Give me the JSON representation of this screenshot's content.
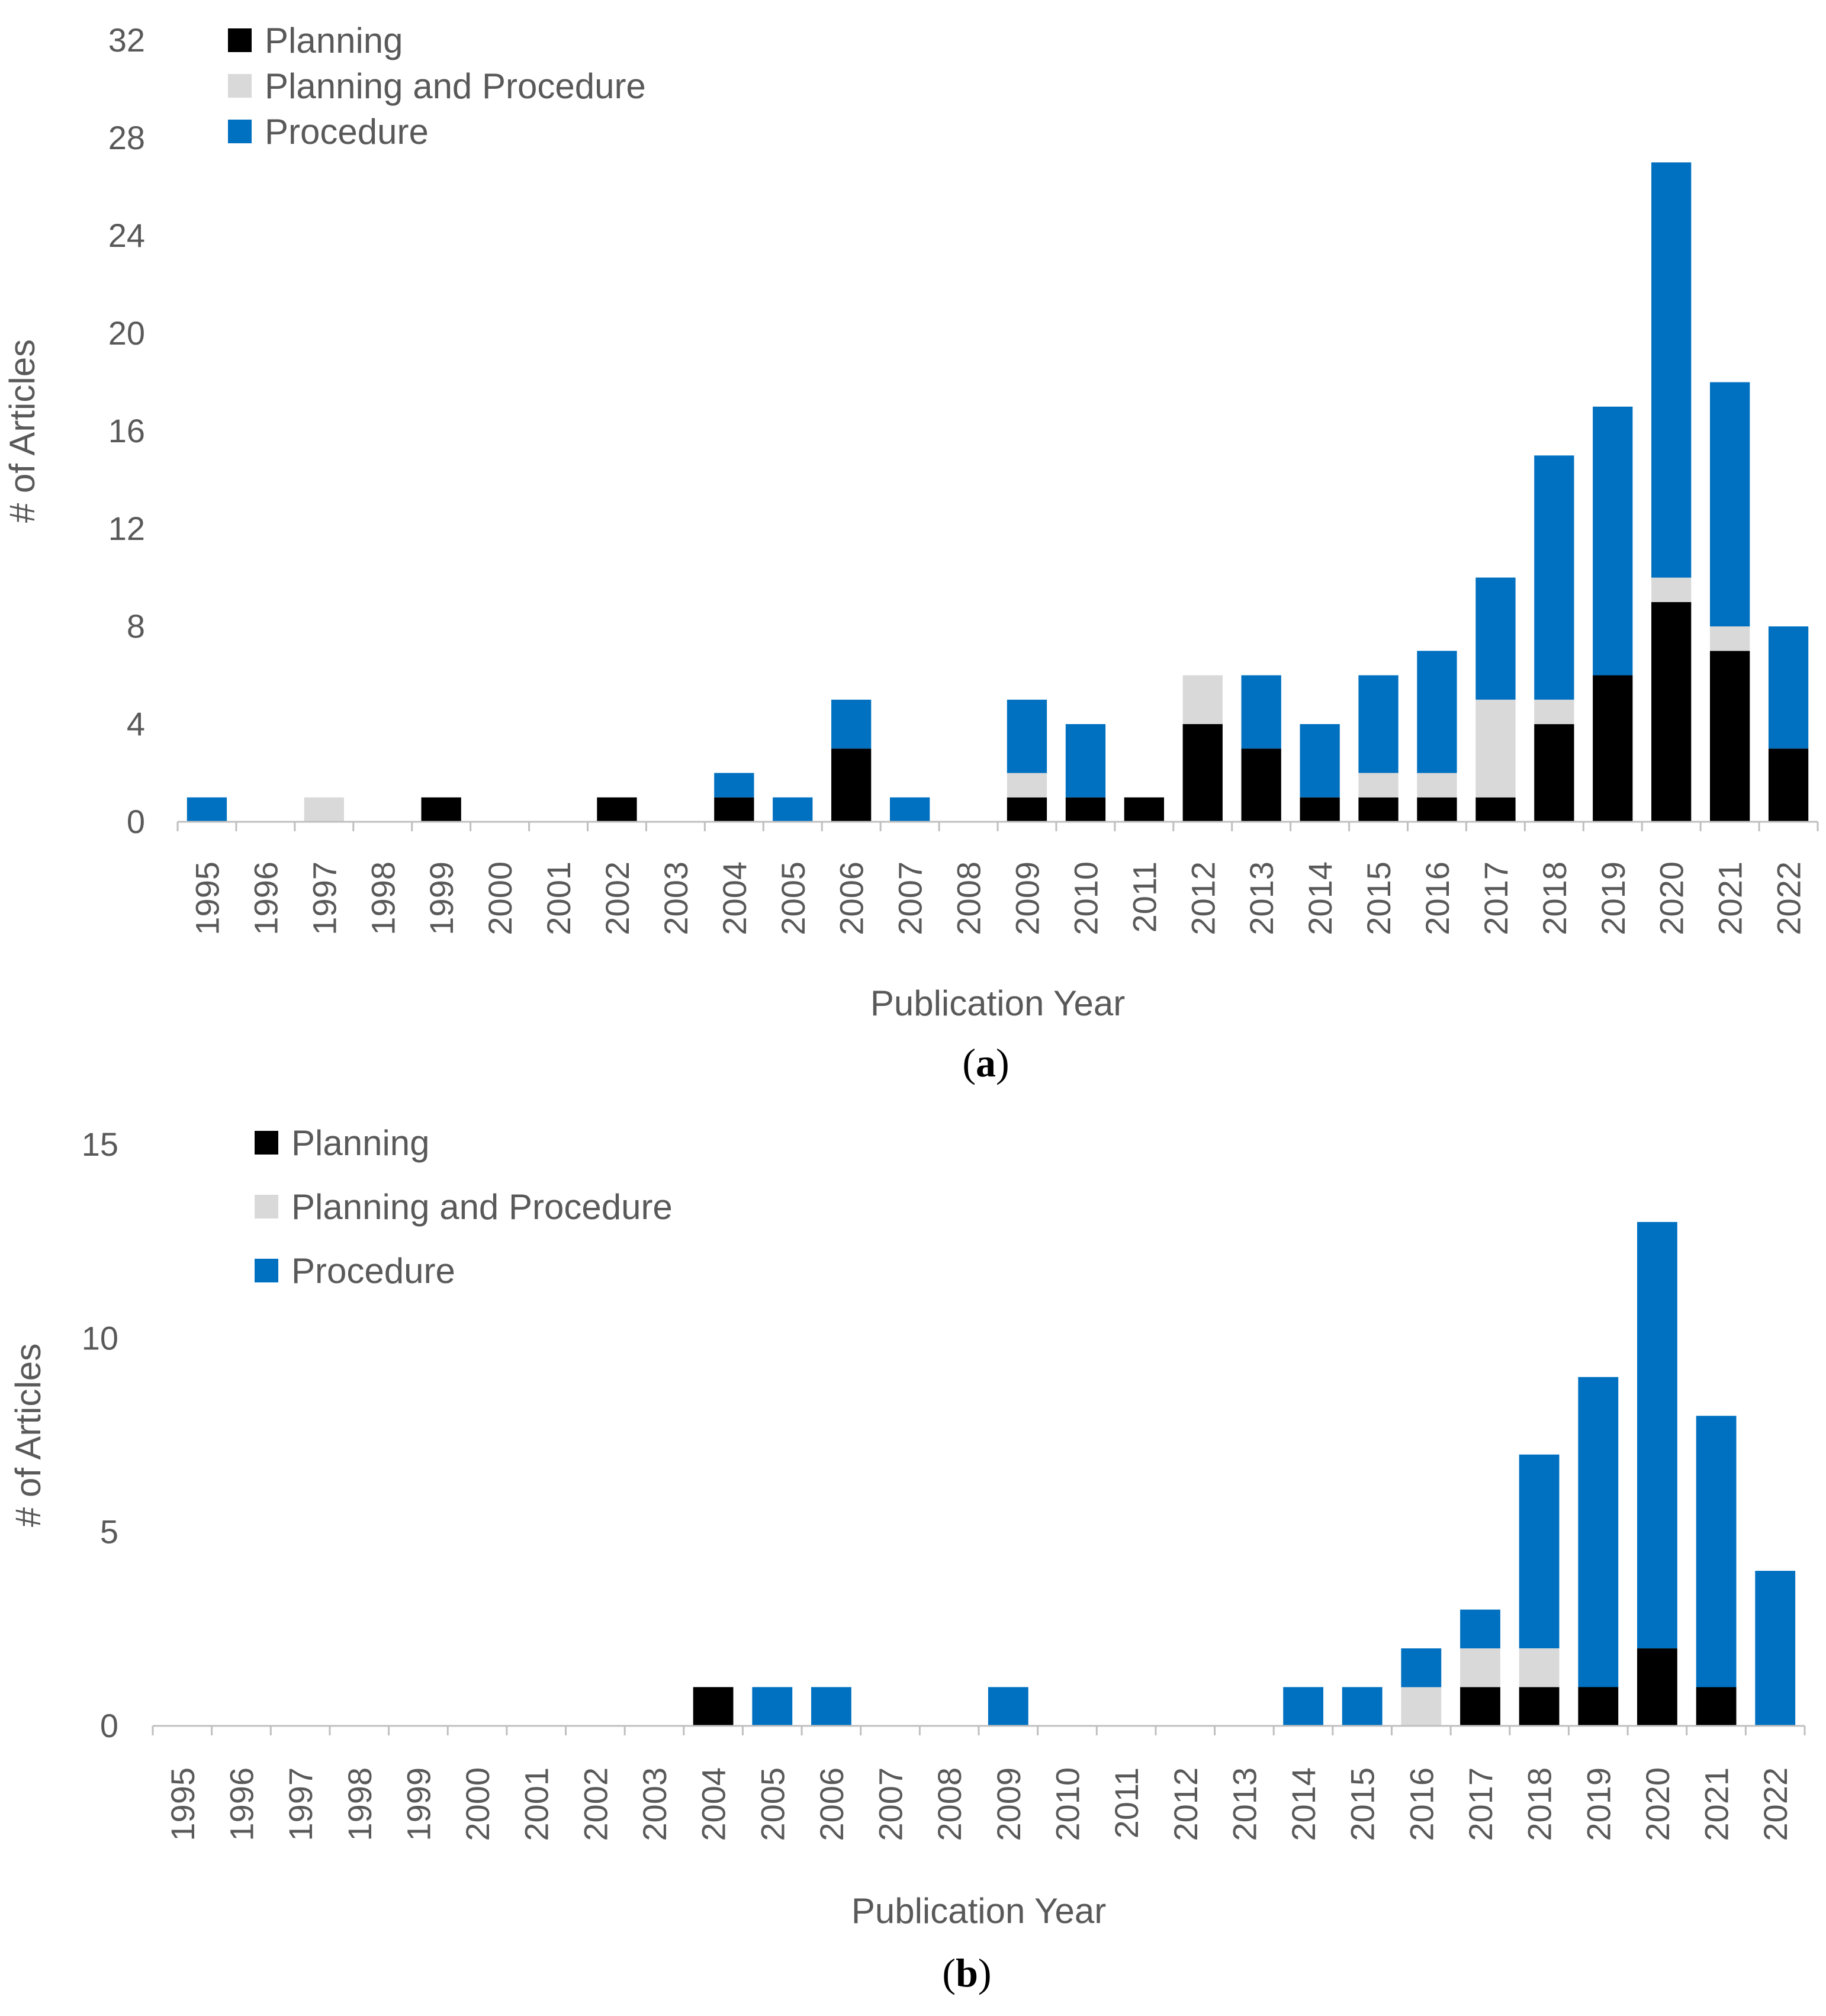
{
  "colors": {
    "Planning": "#000000",
    "Planning and Procedure": "#d9d9d9",
    "Procedure": "#0070c0",
    "axis": "#bfbfbf",
    "text": "#595959"
  },
  "chart_data": [
    {
      "type": "bar",
      "stacked": true,
      "panel": "a",
      "caption": {
        "open": "(",
        "letter": "a",
        "close": ")"
      },
      "categories": [
        "1995",
        "1996",
        "1997",
        "1998",
        "1999",
        "2000",
        "2001",
        "2002",
        "2003",
        "2004",
        "2005",
        "2006",
        "2007",
        "2008",
        "2009",
        "2010",
        "2011",
        "2012",
        "2013",
        "2014",
        "2015",
        "2016",
        "2017",
        "2018",
        "2019",
        "2020",
        "2021",
        "2022"
      ],
      "series": [
        {
          "name": "Planning",
          "values": [
            0,
            0,
            0,
            0,
            1,
            0,
            0,
            1,
            0,
            1,
            0,
            3,
            0,
            0,
            1,
            1,
            1,
            4,
            3,
            1,
            1,
            1,
            1,
            4,
            6,
            9,
            7,
            3
          ]
        },
        {
          "name": "Planning and Procedure",
          "values": [
            0,
            0,
            1,
            0,
            0,
            0,
            0,
            0,
            0,
            0,
            0,
            0,
            0,
            0,
            1,
            0,
            0,
            2,
            0,
            0,
            1,
            1,
            4,
            1,
            0,
            1,
            1,
            0
          ]
        },
        {
          "name": "Procedure",
          "values": [
            1,
            0,
            0,
            0,
            0,
            0,
            0,
            0,
            0,
            1,
            1,
            2,
            1,
            0,
            3,
            3,
            0,
            0,
            3,
            3,
            4,
            5,
            5,
            10,
            11,
            17,
            10,
            5
          ]
        }
      ],
      "xlabel": "Publication Year",
      "ylabel": "# of Articles",
      "ylim": [
        0,
        32
      ],
      "yticks": [
        0,
        4,
        8,
        12,
        16,
        20,
        24,
        28,
        32
      ],
      "grid": false,
      "legend": "top-left"
    },
    {
      "type": "bar",
      "stacked": true,
      "panel": "b",
      "caption": {
        "open": "(",
        "letter": "b",
        "close": ")"
      },
      "categories": [
        "1995",
        "1996",
        "1997",
        "1998",
        "1999",
        "2000",
        "2001",
        "2002",
        "2003",
        "2004",
        "2005",
        "2006",
        "2007",
        "2008",
        "2009",
        "2010",
        "2011",
        "2012",
        "2013",
        "2014",
        "2015",
        "2016",
        "2017",
        "2018",
        "2019",
        "2020",
        "2021",
        "2022"
      ],
      "series": [
        {
          "name": "Planning",
          "values": [
            0,
            0,
            0,
            0,
            0,
            0,
            0,
            0,
            0,
            1,
            0,
            0,
            0,
            0,
            0,
            0,
            0,
            0,
            0,
            0,
            0,
            0,
            1,
            1,
            1,
            2,
            1,
            0
          ]
        },
        {
          "name": "Planning and Procedure",
          "values": [
            0,
            0,
            0,
            0,
            0,
            0,
            0,
            0,
            0,
            0,
            0,
            0,
            0,
            0,
            0,
            0,
            0,
            0,
            0,
            0,
            0,
            1,
            1,
            1,
            0,
            0,
            0,
            0
          ]
        },
        {
          "name": "Procedure",
          "values": [
            0,
            0,
            0,
            0,
            0,
            0,
            0,
            0,
            0,
            0,
            1,
            1,
            0,
            0,
            1,
            0,
            0,
            0,
            0,
            1,
            1,
            1,
            1,
            5,
            8,
            11,
            7,
            4
          ]
        }
      ],
      "xlabel": "Publication Year",
      "ylabel": "# of Articles",
      "ylim": [
        0,
        15
      ],
      "yticks": [
        0,
        5,
        10,
        15
      ],
      "grid": false,
      "legend": "top-left"
    }
  ]
}
